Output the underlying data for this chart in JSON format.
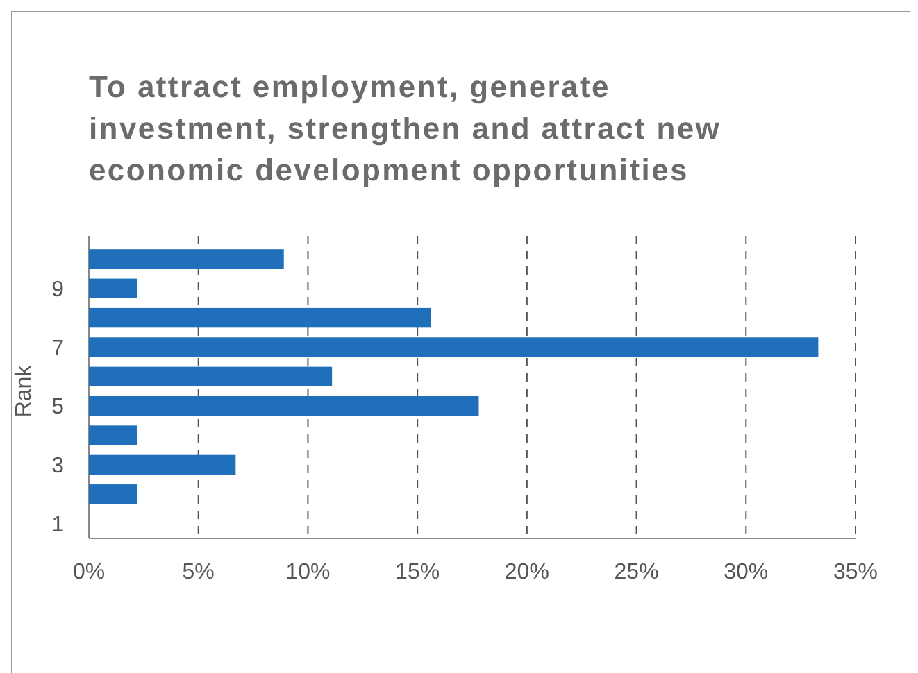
{
  "chart_data": {
    "type": "bar",
    "orientation": "horizontal",
    "title": "To attract employment, generate investment, strengthen and attract new economic development opportunities",
    "ylabel": "Rank",
    "categories": [
      null,
      "9",
      null,
      "7",
      null,
      "5",
      null,
      "3",
      null,
      "1"
    ],
    "values": [
      8.9,
      2.2,
      15.6,
      33.3,
      11.1,
      17.8,
      2.2,
      6.7,
      2.2,
      0
    ],
    "color": "#1f6fba",
    "xlim": [
      0,
      35
    ],
    "xticks": [
      {
        "value": 0,
        "label": "0%"
      },
      {
        "value": 5,
        "label": "5%"
      },
      {
        "value": 10,
        "label": "10%"
      },
      {
        "value": 15,
        "label": "15%"
      },
      {
        "value": 20,
        "label": "20%"
      },
      {
        "value": 25,
        "label": "25%"
      },
      {
        "value": 30,
        "label": "30%"
      },
      {
        "value": 35,
        "label": "35%"
      }
    ],
    "grid": "x"
  }
}
